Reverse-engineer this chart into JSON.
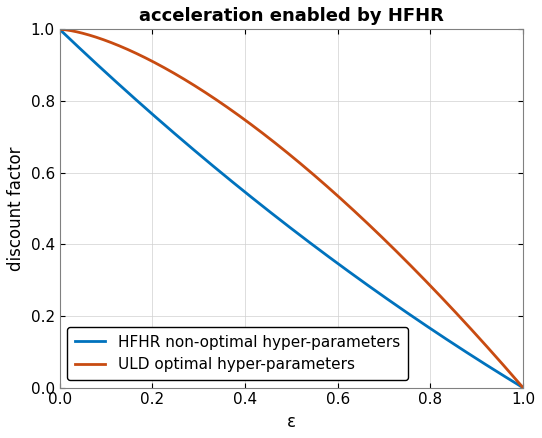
{
  "title": "acceleration enabled by HFHR",
  "xlabel": "ε",
  "ylabel": "discount factor",
  "xlim": [
    0,
    1
  ],
  "ylim": [
    0,
    1
  ],
  "line1_label": "HFHR non-optimal hyper-parameters",
  "line1_color": "#0072BD",
  "line2_label": "ULD optimal hyper-parameters",
  "line2_color": "#C84B11",
  "line_width": 2.0,
  "title_fontsize": 13,
  "label_fontsize": 12,
  "tick_fontsize": 11,
  "legend_fontsize": 11,
  "blue_power": 0.5,
  "orange_power": 0.28,
  "xticks": [
    0,
    0.2,
    0.4,
    0.6,
    0.8,
    1.0
  ],
  "yticks": [
    0,
    0.2,
    0.4,
    0.6,
    0.8,
    1.0
  ],
  "bg_color": "#ffffff",
  "axes_bg": "#ffffff"
}
